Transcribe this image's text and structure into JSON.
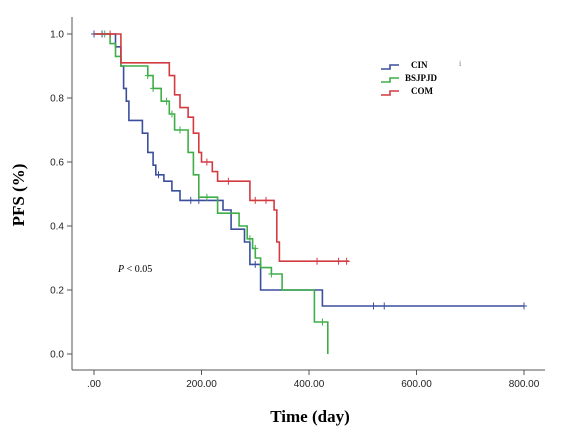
{
  "chart_data": {
    "type": "line",
    "step": true,
    "xlabel": "Time (day)",
    "ylabel": "PFS (%)",
    "xlim": [
      -10,
      800
    ],
    "ylim": [
      0,
      1.0
    ],
    "x_ticks": [
      ".00",
      "200.00",
      "400.00",
      "600.00",
      "800.00"
    ],
    "x_tick_values": [
      0,
      200,
      400,
      600,
      800
    ],
    "y_ticks": [
      "0.0",
      "0.2",
      "0.4",
      "0.6",
      "0.8",
      "1.0"
    ],
    "y_tick_values": [
      0,
      0.2,
      0.4,
      0.6,
      0.8,
      1.0
    ],
    "grid": false,
    "legend_position": "top-right",
    "annotation_prefix": "P",
    "annotation_rest": " < 0.05",
    "stray_mark": "i",
    "series": [
      {
        "name": "CIN",
        "color": "#3a4f9c",
        "points": [
          [
            0,
            1.0
          ],
          [
            40,
            0.96
          ],
          [
            50,
            0.9
          ],
          [
            55,
            0.83
          ],
          [
            60,
            0.79
          ],
          [
            65,
            0.73
          ],
          [
            90,
            0.69
          ],
          [
            100,
            0.63
          ],
          [
            110,
            0.59
          ],
          [
            115,
            0.56
          ],
          [
            130,
            0.54
          ],
          [
            145,
            0.51
          ],
          [
            160,
            0.48
          ],
          [
            230,
            0.48
          ],
          [
            240,
            0.45
          ],
          [
            255,
            0.39
          ],
          [
            280,
            0.35
          ],
          [
            290,
            0.28
          ],
          [
            310,
            0.2
          ],
          [
            420,
            0.2
          ],
          [
            425,
            0.15
          ],
          [
            800,
            0.15
          ]
        ],
        "censored": [
          [
            0,
            1.0
          ],
          [
            15,
            1.0
          ],
          [
            120,
            0.56
          ],
          [
            180,
            0.48
          ],
          [
            195,
            0.48
          ],
          [
            300,
            0.28
          ],
          [
            520,
            0.15
          ],
          [
            540,
            0.15
          ],
          [
            800,
            0.15
          ]
        ]
      },
      {
        "name": "BSJPJD",
        "color": "#3fae49",
        "points": [
          [
            0,
            1.0
          ],
          [
            30,
            0.97
          ],
          [
            40,
            0.93
          ],
          [
            50,
            0.9
          ],
          [
            100,
            0.87
          ],
          [
            110,
            0.83
          ],
          [
            125,
            0.79
          ],
          [
            140,
            0.75
          ],
          [
            150,
            0.7
          ],
          [
            175,
            0.63
          ],
          [
            185,
            0.56
          ],
          [
            195,
            0.49
          ],
          [
            225,
            0.49
          ],
          [
            230,
            0.44
          ],
          [
            260,
            0.44
          ],
          [
            270,
            0.4
          ],
          [
            285,
            0.36
          ],
          [
            295,
            0.33
          ],
          [
            300,
            0.3
          ],
          [
            310,
            0.27
          ],
          [
            330,
            0.25
          ],
          [
            350,
            0.2
          ],
          [
            400,
            0.2
          ],
          [
            410,
            0.1
          ],
          [
            435,
            0.1
          ],
          [
            435,
            0.0
          ]
        ],
        "censored": [
          [
            20,
            1.0
          ],
          [
            100,
            0.87
          ],
          [
            110,
            0.83
          ],
          [
            135,
            0.79
          ],
          [
            145,
            0.75
          ],
          [
            160,
            0.7
          ],
          [
            210,
            0.49
          ],
          [
            290,
            0.36
          ],
          [
            300,
            0.33
          ],
          [
            330,
            0.25
          ],
          [
            425,
            0.1
          ]
        ]
      },
      {
        "name": "COM",
        "color": "#d23b40",
        "points": [
          [
            0,
            1.0
          ],
          [
            50,
            0.91
          ],
          [
            130,
            0.91
          ],
          [
            140,
            0.87
          ],
          [
            150,
            0.81
          ],
          [
            160,
            0.77
          ],
          [
            175,
            0.74
          ],
          [
            185,
            0.69
          ],
          [
            195,
            0.63
          ],
          [
            200,
            0.6
          ],
          [
            220,
            0.57
          ],
          [
            230,
            0.54
          ],
          [
            285,
            0.54
          ],
          [
            290,
            0.48
          ],
          [
            330,
            0.48
          ],
          [
            335,
            0.45
          ],
          [
            340,
            0.35
          ],
          [
            345,
            0.29
          ],
          [
            475,
            0.29
          ]
        ],
        "censored": [
          [
            30,
            1.0
          ],
          [
            210,
            0.6
          ],
          [
            250,
            0.54
          ],
          [
            300,
            0.48
          ],
          [
            320,
            0.48
          ],
          [
            415,
            0.29
          ],
          [
            455,
            0.29
          ],
          [
            470,
            0.29
          ]
        ]
      }
    ]
  }
}
